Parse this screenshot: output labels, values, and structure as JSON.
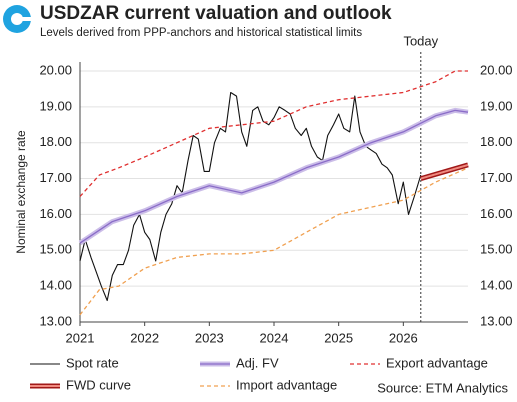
{
  "chart_data": {
    "type": "line",
    "title": "USDZAR current valuation and outlook",
    "subtitle": "Levels derived from PPP-anchors and historical statistical limits",
    "y_label": "Nominal exchange rate",
    "source": "Source: ETM Analytics",
    "today": {
      "label": "Today",
      "x": 2026.27
    },
    "xlim": [
      2021,
      2027
    ],
    "xticks": [
      2021,
      2022,
      2023,
      2024,
      2025,
      2026
    ],
    "ylim": [
      13,
      20.25
    ],
    "yticks": [
      {
        "value": 13,
        "label": "13.00"
      },
      {
        "value": 14,
        "label": "14.00"
      },
      {
        "value": 15,
        "label": "15.00"
      },
      {
        "value": 16,
        "label": "16.00"
      },
      {
        "value": 17,
        "label": "17.00"
      },
      {
        "value": 18,
        "label": "18.00"
      },
      {
        "value": 19,
        "label": "19.00"
      },
      {
        "value": 20,
        "label": "20.00"
      }
    ],
    "y2lim": [
      13,
      20.25
    ],
    "y2ticks": [
      {
        "value": 13,
        "label": "13.00"
      },
      {
        "value": 14,
        "label": "14.00"
      },
      {
        "value": 15,
        "label": "15.00"
      },
      {
        "value": 16,
        "label": "16.00"
      },
      {
        "value": 17,
        "label": "17.00"
      },
      {
        "value": 18,
        "label": "18.00"
      },
      {
        "value": 19,
        "label": "19.00"
      },
      {
        "value": 20,
        "label": "20.00"
      }
    ],
    "grid": true,
    "series": [
      {
        "name": "Spot rate",
        "color": "#111111",
        "style": "solid",
        "x": [
          2021,
          2021.08,
          2021.17,
          2021.25,
          2021.33,
          2021.42,
          2021.5,
          2021.58,
          2021.67,
          2021.75,
          2021.83,
          2021.92,
          2022,
          2022.08,
          2022.17,
          2022.25,
          2022.33,
          2022.42,
          2022.5,
          2022.58,
          2022.67,
          2022.75,
          2022.83,
          2022.92,
          2023,
          2023.08,
          2023.17,
          2023.25,
          2023.33,
          2023.42,
          2023.5,
          2023.58,
          2023.67,
          2023.75,
          2023.83,
          2023.92,
          2024,
          2024.08,
          2024.17,
          2024.25,
          2024.33,
          2024.42,
          2024.5,
          2024.58,
          2024.67,
          2024.75,
          2024.83,
          2024.92,
          2025,
          2025.08,
          2025.17,
          2025.25,
          2025.33,
          2025.42,
          2025.5,
          2025.58,
          2025.67,
          2025.75,
          2025.83,
          2025.92,
          2026,
          2026.08,
          2026.17,
          2026.27
        ],
        "values": [
          14.7,
          15.3,
          14.8,
          14.4,
          14.0,
          13.6,
          14.3,
          14.6,
          14.6,
          15.0,
          15.7,
          16.0,
          15.5,
          15.3,
          14.7,
          15.5,
          16.0,
          16.3,
          16.8,
          16.6,
          17.5,
          18.2,
          18.1,
          17.2,
          17.2,
          18.0,
          18.4,
          18.3,
          19.4,
          19.3,
          18.3,
          17.9,
          18.9,
          19.0,
          18.6,
          18.5,
          18.7,
          19.0,
          18.9,
          18.8,
          18.4,
          18.2,
          18.4,
          17.9,
          17.6,
          17.5,
          18.2,
          18.5,
          18.8,
          18.4,
          18.3,
          19.3,
          18.3,
          17.9,
          17.8,
          17.7,
          17.4,
          17.3,
          17.1,
          16.3,
          16.9,
          16.0,
          16.5,
          17.1
        ]
      },
      {
        "name": "Adj. FV",
        "color": "#8a6cc8",
        "style": "band",
        "x": [
          2021,
          2021.5,
          2022,
          2022.5,
          2023,
          2023.5,
          2024,
          2024.5,
          2025,
          2025.5,
          2026,
          2026.5,
          2026.8,
          2027
        ],
        "values": [
          15.2,
          15.8,
          16.1,
          16.5,
          16.8,
          16.6,
          16.9,
          17.3,
          17.6,
          18.0,
          18.3,
          18.75,
          18.9,
          18.85
        ]
      },
      {
        "name": "Export advantage",
        "color": "#e03030",
        "style": "dashed",
        "x": [
          2021,
          2021.3,
          2021.6,
          2022,
          2022.5,
          2023,
          2023.5,
          2024,
          2024.5,
          2025,
          2025.5,
          2026,
          2026.5,
          2026.8,
          2027
        ],
        "values": [
          16.5,
          17.1,
          17.3,
          17.6,
          18.0,
          18.4,
          18.5,
          18.6,
          19.0,
          19.2,
          19.3,
          19.4,
          19.7,
          20.0,
          20.0
        ]
      },
      {
        "name": "FWD curve",
        "color": "#d42a2a",
        "style": "thick",
        "x": [
          2026.27,
          2027
        ],
        "values": [
          17.0,
          17.38
        ]
      },
      {
        "name": "Import advantage",
        "color": "#f0a050",
        "style": "dashed",
        "x": [
          2021,
          2021.3,
          2021.6,
          2022,
          2022.5,
          2023,
          2023.5,
          2024,
          2024.5,
          2025,
          2025.5,
          2026,
          2026.5,
          2027
        ],
        "values": [
          13.2,
          13.9,
          14.0,
          14.5,
          14.8,
          14.9,
          14.9,
          15.0,
          15.5,
          16.0,
          16.2,
          16.4,
          16.9,
          17.3
        ]
      }
    ]
  }
}
